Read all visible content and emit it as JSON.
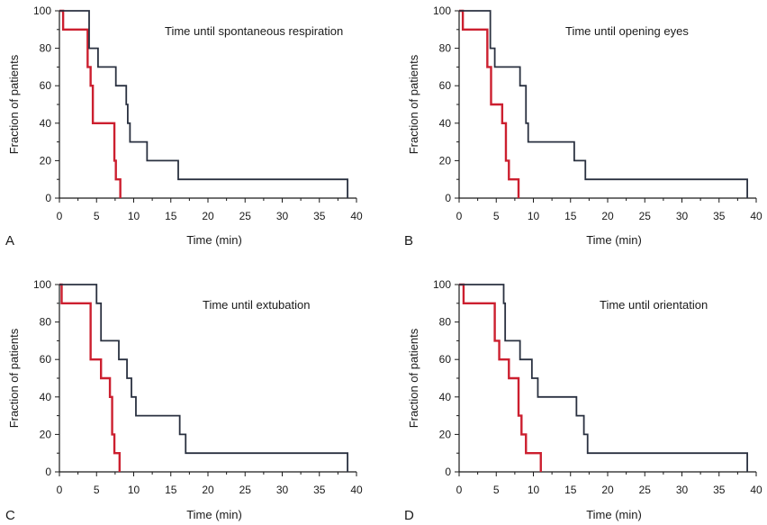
{
  "chart_data": [
    {
      "type": "line",
      "panel_label": "A",
      "title": "Time until spontaneous respiration",
      "xlabel": "Time (min)",
      "ylabel": "Fraction of patients",
      "xlim": [
        0,
        40
      ],
      "ylim": [
        0,
        100
      ],
      "xticks": [
        0,
        5,
        10,
        15,
        20,
        25,
        30,
        35,
        40
      ],
      "yticks": [
        0,
        20,
        40,
        60,
        80,
        100
      ],
      "grid": false,
      "series": [
        {
          "color": "#cc1f2f",
          "x": [
            0.5,
            0.5,
            3.8,
            4.2,
            4.5,
            7.4,
            7.6,
            8.2
          ],
          "y": [
            100,
            90,
            70,
            60,
            40,
            20,
            10,
            0
          ]
        },
        {
          "color": "#2a3140",
          "x": [
            4.0,
            5.2,
            7.6,
            9.0,
            9.2,
            9.5,
            11.8,
            16.0,
            38.8
          ],
          "y": [
            80,
            70,
            60,
            50,
            40,
            30,
            20,
            10,
            0
          ]
        }
      ]
    },
    {
      "type": "line",
      "panel_label": "B",
      "title": "Time until opening eyes",
      "xlabel": "Time (min)",
      "ylabel": "Fraction of patients",
      "xlim": [
        0,
        40
      ],
      "ylim": [
        0,
        100
      ],
      "xticks": [
        0,
        5,
        10,
        15,
        20,
        25,
        30,
        35,
        40
      ],
      "yticks": [
        0,
        20,
        40,
        60,
        80,
        100
      ],
      "grid": false,
      "series": [
        {
          "color": "#cc1f2f",
          "x": [
            0.5,
            0.5,
            3.8,
            4.3,
            5.8,
            6.3,
            6.7,
            8.0
          ],
          "y": [
            100,
            90,
            70,
            50,
            40,
            20,
            10,
            0
          ]
        },
        {
          "color": "#2a3140",
          "x": [
            4.2,
            4.8,
            8.2,
            9.0,
            9.3,
            15.5,
            17.0,
            38.8
          ],
          "y": [
            80,
            70,
            60,
            40,
            30,
            20,
            10,
            0
          ]
        }
      ]
    },
    {
      "type": "line",
      "panel_label": "C",
      "title": "Time until extubation",
      "xlabel": "Time (min)",
      "ylabel": "Fraction of patients",
      "xlim": [
        0,
        40
      ],
      "ylim": [
        0,
        100
      ],
      "xticks": [
        0,
        5,
        10,
        15,
        20,
        25,
        30,
        35,
        40
      ],
      "yticks": [
        0,
        20,
        40,
        60,
        80,
        100
      ],
      "grid": false,
      "series": [
        {
          "color": "#cc1f2f",
          "x": [
            0.3,
            4.2,
            5.6,
            6.8,
            7.1,
            7.4,
            8.1
          ],
          "y": [
            90,
            60,
            50,
            40,
            20,
            10,
            0
          ]
        },
        {
          "color": "#2a3140",
          "x": [
            5.0,
            5.6,
            8.0,
            9.1,
            9.7,
            10.3,
            16.2,
            17.0,
            38.8
          ],
          "y": [
            90,
            70,
            60,
            50,
            40,
            30,
            20,
            10,
            0
          ]
        }
      ]
    },
    {
      "type": "line",
      "panel_label": "D",
      "title": "Time until orientation",
      "xlabel": "Time (min)",
      "ylabel": "Fraction of patients",
      "xlim": [
        0,
        40
      ],
      "ylim": [
        0,
        100
      ],
      "xticks": [
        0,
        5,
        10,
        15,
        20,
        25,
        30,
        35,
        40
      ],
      "yticks": [
        0,
        20,
        40,
        60,
        80,
        100
      ],
      "grid": false,
      "series": [
        {
          "color": "#cc1f2f",
          "x": [
            0.6,
            4.8,
            5.4,
            6.7,
            8.0,
            8.4,
            9.0,
            11.0
          ],
          "y": [
            90,
            70,
            60,
            50,
            30,
            20,
            10,
            0
          ]
        },
        {
          "color": "#2a3140",
          "x": [
            5.0,
            6.0,
            6.2,
            8.2,
            9.8,
            10.6,
            15.8,
            16.8,
            17.3,
            38.8
          ],
          "y": [
            100,
            90,
            70,
            60,
            50,
            40,
            30,
            20,
            10,
            0
          ]
        }
      ]
    }
  ]
}
